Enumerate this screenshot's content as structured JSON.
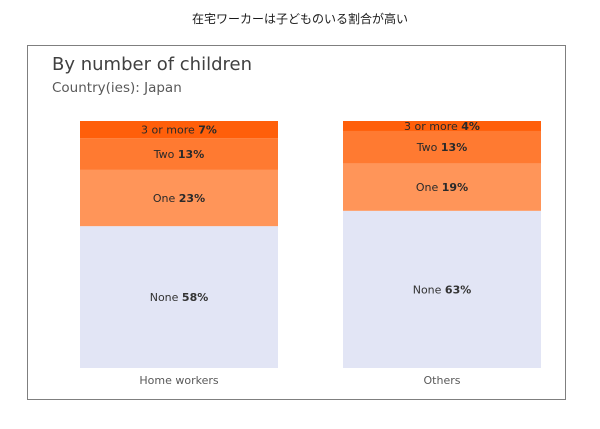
{
  "page_caption": "在宅ワーカーは子どものいる割合が高い",
  "chart_data": {
    "type": "bar",
    "stacked": true,
    "percent": true,
    "title": "By number of children",
    "subtitle": "Country(ies): Japan",
    "categories": [
      "Home workers",
      "Others"
    ],
    "series": [
      {
        "name": "None",
        "values": [
          58,
          63
        ],
        "color": "#e2e5f5"
      },
      {
        "name": "One",
        "values": [
          23,
          19
        ],
        "color": "#ff9559"
      },
      {
        "name": "Two",
        "values": [
          13,
          13
        ],
        "color": "#ff7a31"
      },
      {
        "name": "3 or more",
        "values": [
          7,
          4
        ],
        "color": "#ff5f0a"
      }
    ],
    "unit": "%",
    "legend": "none",
    "grid": false
  }
}
